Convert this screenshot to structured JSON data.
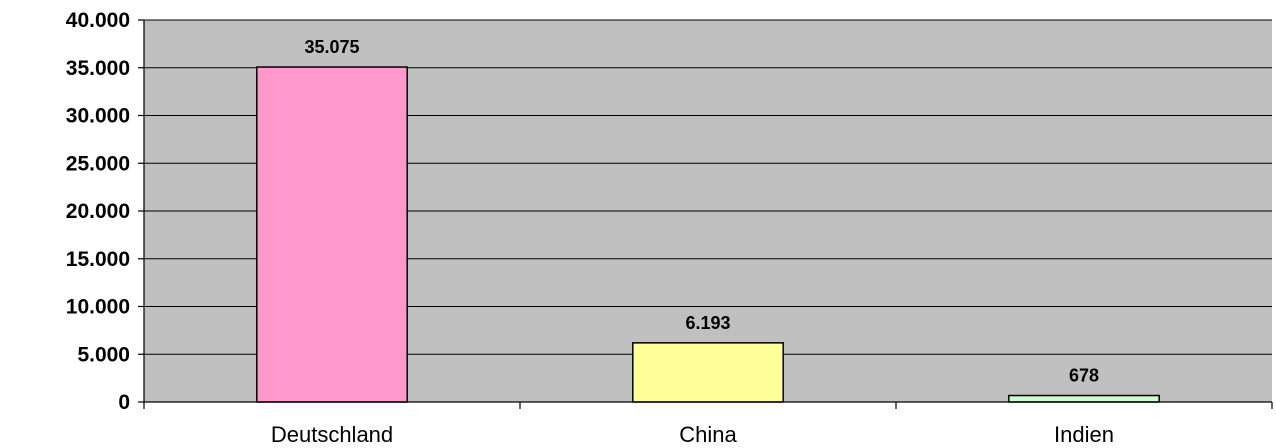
{
  "chart_data": {
    "type": "bar",
    "categories": [
      "Deutschland",
      "China",
      "Indien"
    ],
    "values": [
      35075,
      6193,
      678
    ],
    "data_labels": [
      "35.075",
      "6.193",
      "678"
    ],
    "ylim": [
      0,
      40000
    ],
    "yticks": [
      0,
      5000,
      10000,
      15000,
      20000,
      25000,
      30000,
      35000,
      40000
    ],
    "ytick_labels": [
      "0",
      "5.000",
      "10.000",
      "15.000",
      "20.000",
      "25.000",
      "30.000",
      "35.000",
      "40.000"
    ],
    "bar_colors": [
      "#ff99cc",
      "#ffff99",
      "#ccffcc"
    ],
    "plot_background": "#c0c0c0",
    "grid": true,
    "legend": "none"
  }
}
